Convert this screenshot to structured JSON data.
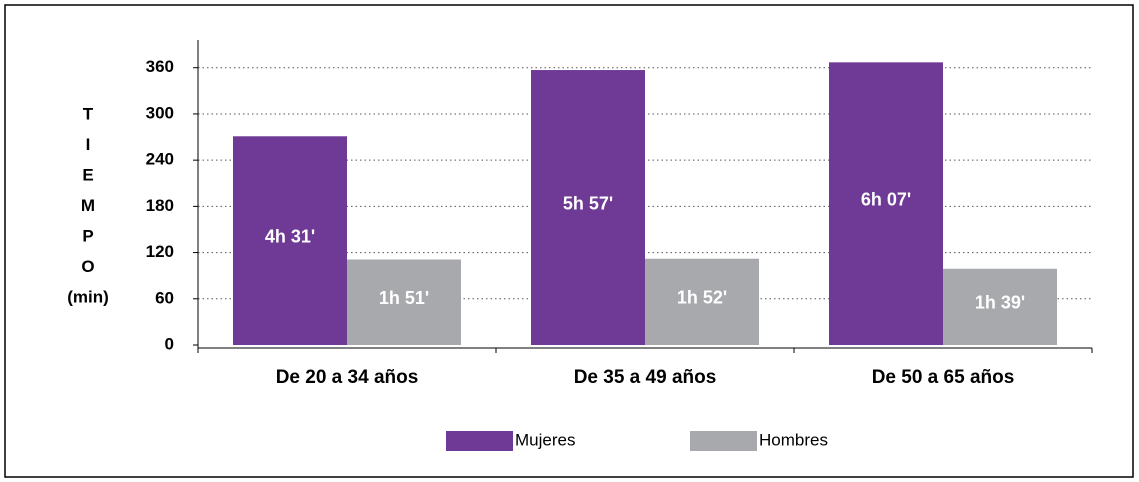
{
  "chart_data": {
    "type": "bar",
    "ylabel_lines": [
      "T",
      "I",
      "E",
      "M",
      "P",
      "O",
      "(min)"
    ],
    "categories": [
      "De 20 a 34 años",
      "De 35 a 49 años",
      "De 50 a 65 años"
    ],
    "series": [
      {
        "name": "Mujeres",
        "color": "#6f3a96",
        "values": [
          271,
          357,
          367
        ],
        "value_labels": [
          "4h 31'",
          "5h 57'",
          "6h 07'"
        ]
      },
      {
        "name": "Hombres",
        "color": "#a7a9ac",
        "values": [
          111,
          112,
          99
        ],
        "value_labels": [
          "1h 51'",
          "1h 52'",
          "1h 39'"
        ]
      }
    ],
    "ylim": [
      0,
      396
    ],
    "yticks": [
      0,
      60,
      120,
      180,
      240,
      300,
      360
    ],
    "grid": true,
    "legend": "bottom"
  }
}
